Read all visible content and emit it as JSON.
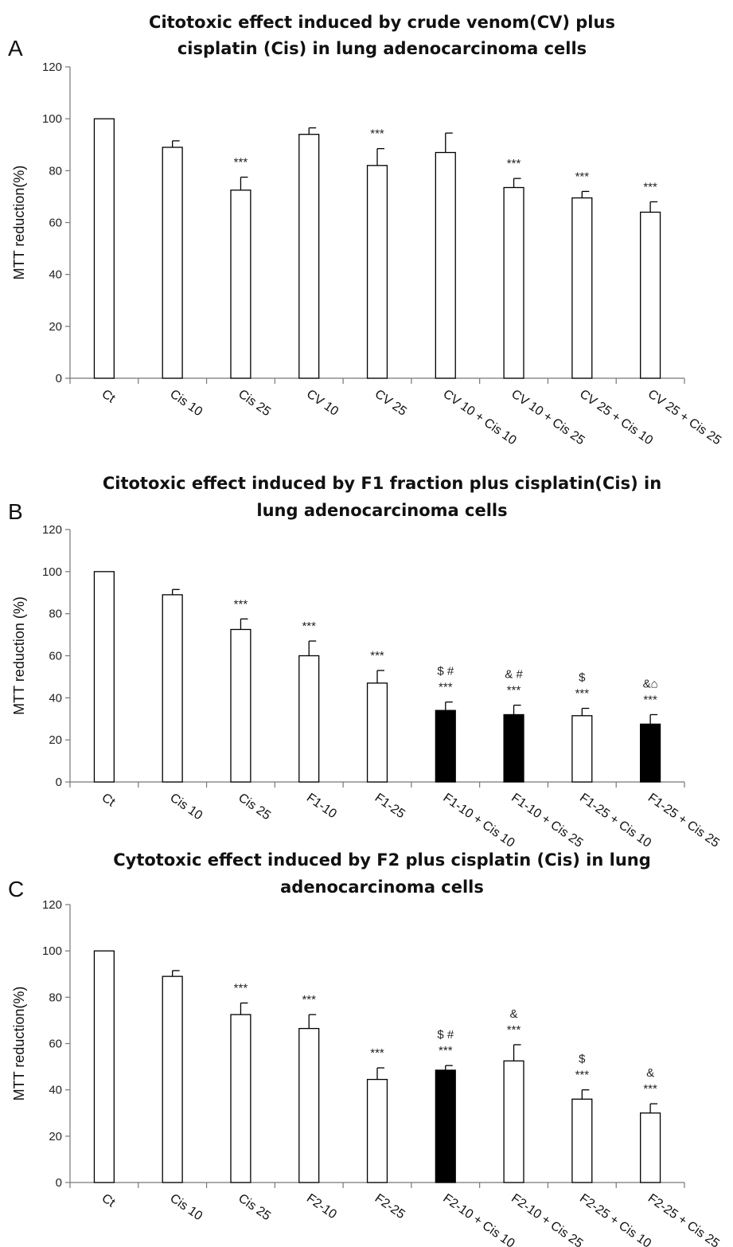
{
  "chart_data": [
    {
      "type": "bar",
      "panel_letter": "A",
      "title_lines": [
        "Citotoxic effect induced by crude venom(CV) plus",
        "cisplatin (Cis) in lung adenocarcinoma cells"
      ],
      "ylabel": "MTT reduction(%)",
      "ylim": [
        0,
        120
      ],
      "yticks": [
        0,
        20,
        40,
        60,
        80,
        100,
        120
      ],
      "categories": [
        "Ct",
        "Cis 10",
        "Cis 25",
        "CV 10",
        "CV 25",
        "CV 10 + Cis 10",
        "CV 10 + Cis 25",
        "CV 25 + Cis 10",
        "CV 25 + Cis 25"
      ],
      "values": [
        100,
        89,
        72.5,
        94,
        82,
        87,
        73.5,
        69.5,
        64
      ],
      "errors": [
        0,
        2.5,
        5,
        2.5,
        6.5,
        7.5,
        3.5,
        2.5,
        4
      ],
      "fill": [
        "white",
        "white",
        "white",
        "white",
        "white",
        "white",
        "white",
        "white",
        "white"
      ],
      "annotations": [
        [],
        [],
        [
          "***"
        ],
        [],
        [
          "***"
        ],
        [],
        [
          "***"
        ],
        [
          "***"
        ],
        [
          "***"
        ]
      ]
    },
    {
      "type": "bar",
      "panel_letter": "B",
      "title_lines": [
        "Citotoxic effect induced by F1 fraction plus cisplatin(Cis) in",
        "lung adenocarcinoma cells"
      ],
      "ylabel": "MTT reduction (%)",
      "ylim": [
        0,
        120
      ],
      "yticks": [
        0,
        20,
        40,
        60,
        80,
        100,
        120
      ],
      "categories": [
        "Ct",
        "Cis 10",
        "Cis 25",
        "F1-10",
        "F1-25",
        "F1-10 + Cis 10",
        "F1-10 + Cis 25",
        "F1-25 + Cis 10",
        "F1-25 + Cis 25"
      ],
      "values": [
        100,
        89,
        72.5,
        60,
        47,
        34,
        32,
        31.5,
        27.5
      ],
      "errors": [
        0,
        2.5,
        5,
        7,
        6,
        4,
        4.5,
        3.5,
        4.5
      ],
      "fill": [
        "white",
        "white",
        "white",
        "white",
        "white",
        "black",
        "black",
        "white",
        "black"
      ],
      "annotations": [
        [],
        [],
        [
          "***"
        ],
        [
          "***"
        ],
        [
          "***"
        ],
        [
          "$ #",
          "***"
        ],
        [
          "& #",
          "***"
        ],
        [
          "$",
          "***"
        ],
        [
          "&⌂",
          "***"
        ]
      ]
    },
    {
      "type": "bar",
      "panel_letter": "C",
      "title_lines": [
        "Cytotoxic effect induced by F2 plus cisplatin (Cis) in lung",
        "adenocarcinoma cells"
      ],
      "ylabel": "MTT reduction(%)",
      "ylim": [
        0,
        120
      ],
      "yticks": [
        0,
        20,
        40,
        60,
        80,
        100,
        120
      ],
      "categories": [
        "Ct",
        "Cis 10",
        "Cis 25",
        "F2-10",
        "F2-25",
        "F2-10 + Cis 10",
        "F2-10 + Cis 25",
        "F2-25 + Cis 10",
        "F2-25 + Cis 25"
      ],
      "values": [
        100,
        89,
        72.5,
        66.5,
        44.5,
        48.5,
        52.5,
        36,
        30
      ],
      "errors": [
        0,
        2.5,
        5,
        6,
        5,
        2,
        7,
        4,
        4
      ],
      "fill": [
        "white",
        "white",
        "white",
        "white",
        "white",
        "black",
        "white",
        "white",
        "white"
      ],
      "annotations": [
        [],
        [],
        [
          "***"
        ],
        [
          "***"
        ],
        [
          "***"
        ],
        [
          "$ #",
          "***"
        ],
        [
          "&",
          "***"
        ],
        [
          "$",
          "***"
        ],
        [
          "&",
          "***"
        ]
      ]
    }
  ]
}
